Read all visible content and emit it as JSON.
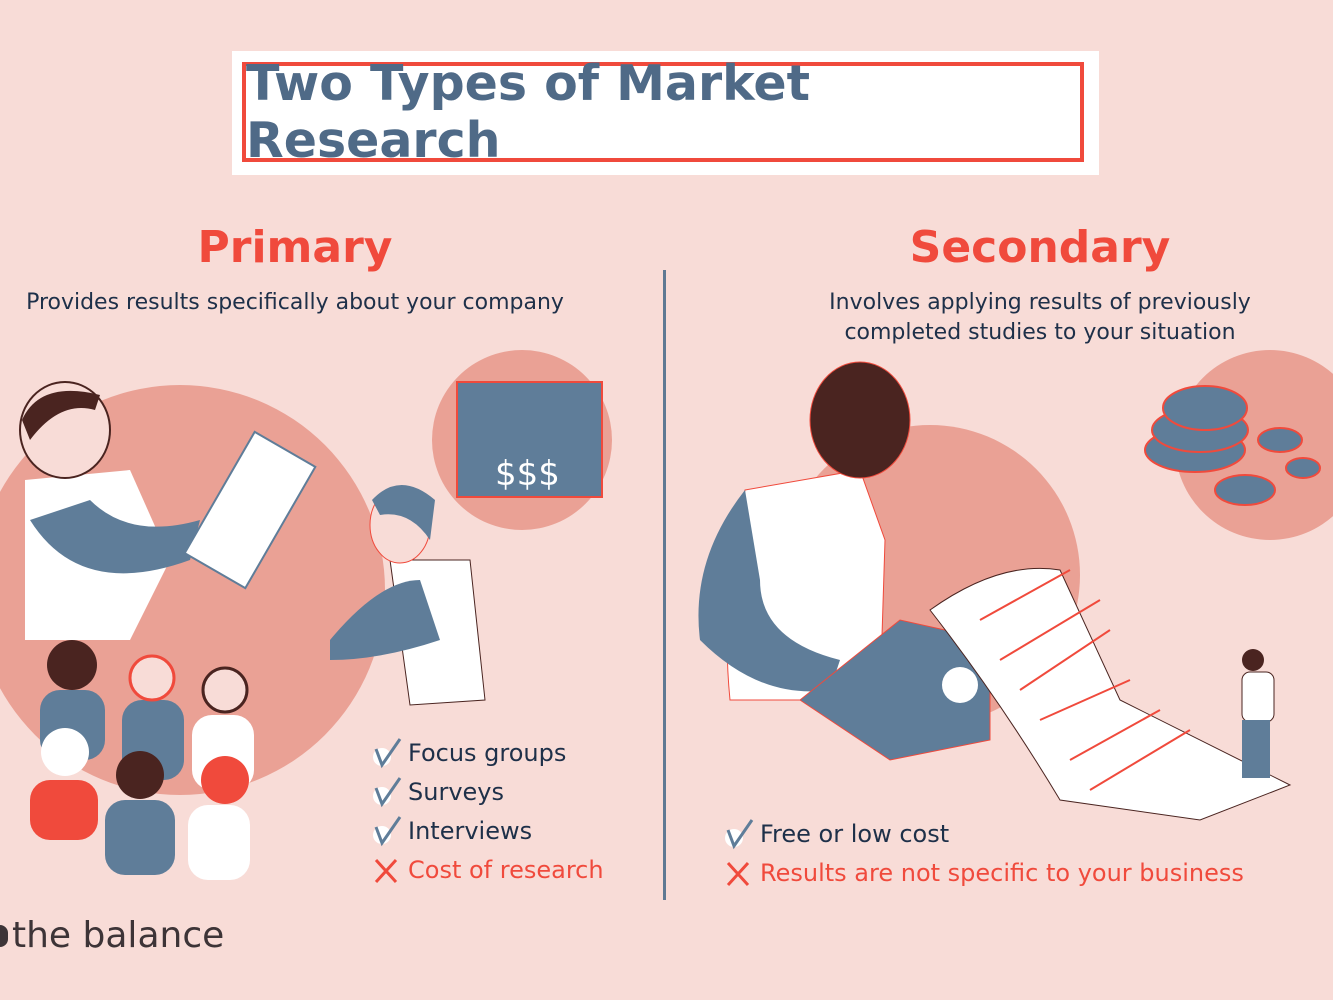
{
  "title": "Two Types of Market Research",
  "primary": {
    "heading": "Primary",
    "description": "Provides results specifically about your company",
    "pros": [
      "Focus groups",
      "Surveys",
      "Interviews"
    ],
    "cons": [
      "Cost of research"
    ]
  },
  "secondary": {
    "heading": "Secondary",
    "description_lines": [
      "Involves applying results of previously",
      "completed studies to your situation"
    ],
    "pros": [
      "Free or low cost"
    ],
    "cons": [
      "Results are not specific to your business"
    ]
  },
  "logo": "the balance",
  "colors": {
    "background": "#f8dcd7",
    "accent": "#f04a3c",
    "title": "#4f6a87",
    "text": "#1e3049",
    "circle": "#eaa195",
    "illustration_blue": "#5f7d99"
  }
}
